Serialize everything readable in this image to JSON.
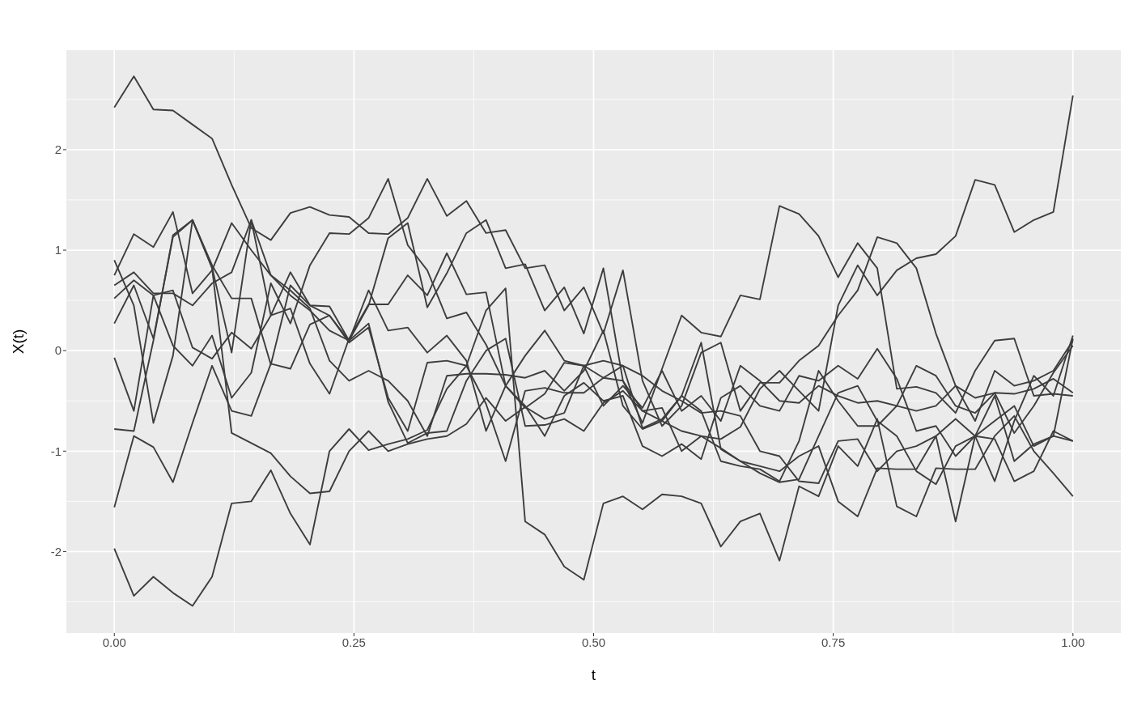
{
  "chart_data": {
    "type": "line",
    "xlabel": "t",
    "ylabel": "X(t)",
    "x": [
      0,
      0.0204,
      0.0408,
      0.0612,
      0.0816,
      0.102,
      0.1224,
      0.1429,
      0.1633,
      0.1837,
      0.2041,
      0.2245,
      0.2449,
      0.2653,
      0.2857,
      0.3061,
      0.3265,
      0.3469,
      0.3673,
      0.3878,
      0.4082,
      0.4286,
      0.449,
      0.4694,
      0.4898,
      0.5102,
      0.5306,
      0.551,
      0.5714,
      0.5918,
      0.6122,
      0.6327,
      0.6531,
      0.6735,
      0.6939,
      0.7143,
      0.7347,
      0.7551,
      0.7755,
      0.7959,
      0.8163,
      0.8367,
      0.8571,
      0.8776,
      0.898,
      0.9184,
      0.9388,
      0.9592,
      0.9796,
      1
    ],
    "xlim": [
      -0.05,
      1.05
    ],
    "ylim": [
      -2.81,
      2.99
    ],
    "xticks": [
      {
        "value": 0,
        "label": "0.00"
      },
      {
        "value": 0.25,
        "label": "0.25"
      },
      {
        "value": 0.5,
        "label": "0.50"
      },
      {
        "value": 0.75,
        "label": "0.75"
      },
      {
        "value": 1,
        "label": "1.00"
      }
    ],
    "yticks": [
      -2,
      -1,
      0,
      1,
      2
    ],
    "grid": true,
    "legend": false,
    "marker": "none",
    "line_style": "solid",
    "series": [
      {
        "color": "#3d3d3d",
        "values": [
          2.42,
          2.73,
          2.4,
          2.39,
          2.25,
          2.11,
          1.65,
          1.22,
          1.1,
          1.37,
          1.43,
          1.35,
          1.33,
          1.17,
          1.16,
          1.32,
          1.71,
          1.34,
          1.49,
          1.17,
          1.2,
          0.82,
          0.85,
          0.4,
          0.63,
          0.17,
          0.8,
          -0.3,
          -0.75,
          -0.55,
          -0.02,
          0.08,
          -0.6,
          -0.32,
          -0.32,
          -0.1,
          0.05,
          0.35,
          0.6,
          1.13,
          1.07,
          0.82,
          0.17,
          -0.35,
          -0.7,
          -0.2,
          -0.35,
          -0.3,
          -0.2,
          0.1
        ]
      },
      {
        "color": "#3d3d3d",
        "values": [
          0.9,
          0.45,
          -0.72,
          -0.05,
          1.3,
          0.85,
          0.52,
          0.52,
          -0.14,
          0.65,
          0.45,
          0.44,
          0.1,
          0.45,
          1.12,
          1.27,
          0.43,
          0.77,
          1.17,
          1.3,
          0.82,
          0.86,
          0.4,
          0.63,
          0.17,
          0.82,
          -0.3,
          -0.72,
          -0.18,
          0.35,
          0.18,
          0.14,
          0.55,
          0.51,
          1.44,
          1.36,
          1.14,
          0.73,
          1.07,
          0.82,
          -0.38,
          -0.36,
          -0.42,
          -0.62,
          -0.2,
          0.1,
          0.12,
          -0.45,
          -0.43,
          -0.45
        ]
      },
      {
        "color": "#3d3d3d",
        "values": [
          0.75,
          1.16,
          1.03,
          1.38,
          0.57,
          0.8,
          1.27,
          1.0,
          0.75,
          0.6,
          0.42,
          -0.1,
          -0.3,
          -0.2,
          -0.3,
          -0.5,
          -0.85,
          -0.25,
          -0.23,
          -0.23,
          -0.24,
          -0.27,
          -0.2,
          -0.4,
          -0.2,
          0.2,
          -0.55,
          -0.78,
          -0.7,
          -0.45,
          -0.6,
          -1.1,
          -1.15,
          -1.18,
          -1.3,
          -0.9,
          -0.2,
          -0.5,
          -0.75,
          -0.75,
          -0.55,
          -0.6,
          -0.55,
          -0.35,
          -0.47,
          -0.42,
          -0.43,
          -0.38,
          -0.28,
          -0.42
        ]
      },
      {
        "color": "#3d3d3d",
        "values": [
          0.65,
          0.78,
          0.57,
          0.57,
          0.45,
          0.67,
          0.78,
          1.3,
          0.75,
          0.55,
          0.4,
          0.2,
          0.1,
          0.6,
          0.2,
          0.23,
          -0.02,
          0.15,
          -0.1,
          -0.8,
          -0.35,
          -0.05,
          0.2,
          -0.1,
          -0.15,
          -0.27,
          -0.15,
          -0.77,
          -0.68,
          -0.45,
          0.08,
          -0.98,
          -1.1,
          -1.15,
          -1.2,
          -1.05,
          -0.95,
          -1.5,
          -1.65,
          -1.17,
          -1.18,
          -1.18,
          -0.85,
          -0.68,
          -0.85,
          -0.7,
          -0.55,
          -0.95,
          -0.85,
          -0.9
        ]
      },
      {
        "color": "#3d3d3d",
        "values": [
          0.52,
          0.7,
          0.55,
          0.05,
          -0.15,
          0.15,
          -0.47,
          -0.22,
          0.67,
          0.27,
          0.85,
          1.17,
          1.16,
          1.32,
          1.71,
          1.05,
          0.8,
          0.32,
          0.38,
          0.06,
          -0.35,
          -0.55,
          -0.85,
          -0.45,
          -0.32,
          -0.5,
          -0.45,
          -0.95,
          -1.05,
          -0.93,
          -1.08,
          -0.47,
          -0.35,
          -0.55,
          -0.6,
          -0.25,
          -0.3,
          -0.15,
          -0.28,
          0.02,
          -0.28,
          -0.8,
          -0.75,
          -1.05,
          -0.85,
          -1.3,
          -0.7,
          -0.25,
          -0.45,
          0.15
        ]
      },
      {
        "color": "#3d3d3d",
        "values": [
          0.27,
          0.65,
          0.12,
          1.13,
          1.3,
          0.83,
          -0.02,
          1.3,
          0.35,
          0.42,
          -0.13,
          -0.43,
          0.12,
          0.46,
          0.46,
          0.75,
          0.55,
          0.97,
          0.56,
          0.58,
          -0.35,
          -0.57,
          -0.43,
          -0.12,
          -0.15,
          -0.55,
          -0.35,
          -0.57,
          -0.2,
          -0.6,
          -0.45,
          -0.7,
          -0.15,
          -0.3,
          -0.5,
          -0.52,
          -0.35,
          -0.45,
          -0.52,
          -0.5,
          -0.55,
          -0.15,
          -0.25,
          -0.55,
          -0.62,
          -0.42,
          -0.82,
          -0.55,
          -0.22,
          0.05
        ]
      },
      {
        "color": "#3d3d3d",
        "values": [
          -0.07,
          -0.6,
          0.55,
          0.6,
          0.03,
          -0.08,
          0.18,
          0.02,
          0.35,
          0.78,
          0.45,
          0.35,
          0.1,
          0.27,
          -0.51,
          -0.92,
          -0.82,
          -0.8,
          -0.3,
          0.0,
          0.12,
          -0.75,
          -0.74,
          -0.68,
          -0.8,
          -0.52,
          -0.4,
          -0.6,
          -0.57,
          -1.0,
          -0.85,
          -0.97,
          -1.1,
          -1.22,
          -1.31,
          -1.28,
          -0.85,
          -0.42,
          -0.35,
          -0.7,
          -0.85,
          -1.2,
          -1.33,
          -0.95,
          -0.85,
          -0.88,
          -1.3,
          -1.2,
          -0.8,
          -0.9
        ]
      },
      {
        "color": "#3d3d3d",
        "values": [
          -0.78,
          -0.8,
          0.1,
          1.15,
          1.3,
          0.82,
          -0.82,
          -0.92,
          -1.02,
          -1.25,
          -1.42,
          -1.4,
          -1.0,
          -0.8,
          -1.0,
          -0.93,
          -0.88,
          -0.85,
          -0.73,
          -0.47,
          -0.7,
          -0.56,
          -0.68,
          -0.62,
          -0.15,
          -0.1,
          -0.15,
          -0.25,
          -0.4,
          -0.5,
          -0.62,
          -0.6,
          -0.65,
          -1.0,
          -1.05,
          -1.3,
          -1.32,
          -0.9,
          -0.88,
          -1.2,
          -1.0,
          -0.95,
          -0.85,
          -1.7,
          -0.85,
          -0.45,
          -1.1,
          -0.93,
          -0.85,
          0.12
        ]
      },
      {
        "color": "#3d3d3d",
        "values": [
          -1.56,
          -0.85,
          -0.96,
          -1.31,
          -0.72,
          -0.15,
          -0.6,
          -0.65,
          -0.13,
          -0.18,
          0.26,
          0.35,
          0.08,
          0.23,
          -0.47,
          -0.8,
          -0.12,
          -0.1,
          -0.15,
          0.4,
          0.62,
          -1.7,
          -1.83,
          -2.15,
          -2.28,
          -1.52,
          -1.45,
          -1.58,
          -1.43,
          -1.45,
          -1.52,
          -1.95,
          -1.7,
          -1.62,
          -2.09,
          -1.35,
          -1.45,
          -0.95,
          -1.15,
          -0.68,
          -1.55,
          -1.65,
          -1.17,
          -1.18,
          -1.18,
          -0.85,
          -0.65,
          -1.0,
          -1.22,
          -1.45
        ]
      },
      {
        "color": "#3d3d3d",
        "values": [
          -1.97,
          -2.44,
          -2.25,
          -2.41,
          -2.54,
          -2.25,
          -1.52,
          -1.5,
          -1.19,
          -1.62,
          -1.93,
          -1.0,
          -0.78,
          -0.99,
          -0.93,
          -0.88,
          -0.79,
          -0.38,
          -0.15,
          -0.53,
          -1.1,
          -0.4,
          -0.37,
          -0.42,
          -0.42,
          -0.27,
          -0.3,
          -0.6,
          -0.7,
          -0.8,
          -0.85,
          -0.88,
          -0.76,
          -0.38,
          -0.2,
          -0.4,
          -0.6,
          0.45,
          0.85,
          0.55,
          0.8,
          0.92,
          0.96,
          1.14,
          1.7,
          1.65,
          1.18,
          1.3,
          1.38,
          2.54
        ]
      }
    ]
  }
}
